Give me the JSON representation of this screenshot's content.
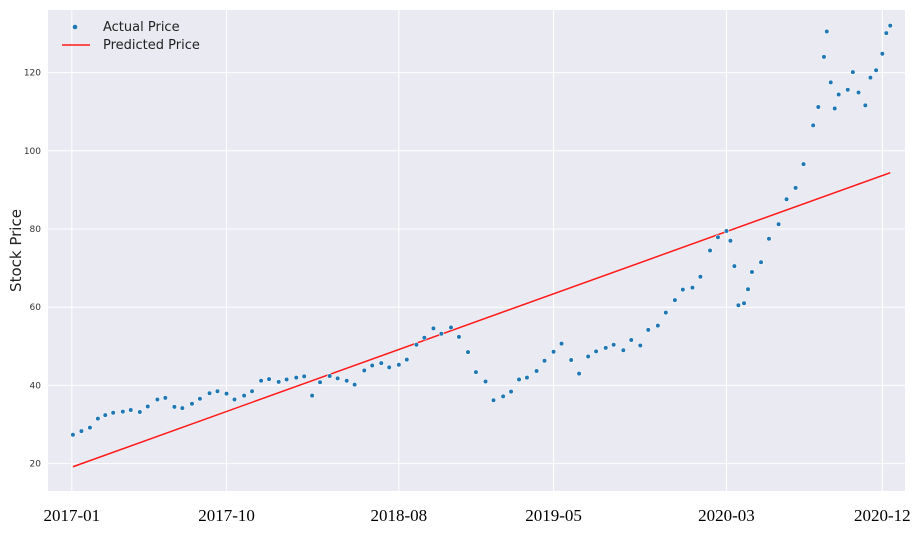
{
  "chart_data": {
    "type": "scatter",
    "xlabel": "",
    "ylabel": "Stock Price",
    "ylim": [
      13,
      136
    ],
    "xlim": [
      "2016-11-20",
      "2021-01-10"
    ],
    "yticks": [
      20,
      40,
      60,
      80,
      100,
      120
    ],
    "xticks": [
      {
        "date": "2017-01-01",
        "label": "2017-01"
      },
      {
        "date": "2017-10-01",
        "label": "2017-10"
      },
      {
        "date": "2018-08-01",
        "label": "2018-08"
      },
      {
        "date": "2019-05-01",
        "label": "2019-05"
      },
      {
        "date": "2020-03-01",
        "label": "2020-03"
      },
      {
        "date": "2020-12-01",
        "label": "2020-12"
      }
    ],
    "trailing_mark": "↵",
    "grid": true,
    "legend_position": "top-left",
    "colors": {
      "actual": "#1f77b4",
      "predicted": "#ff1a1a",
      "plot_bg": "#eaeaf2",
      "grid": "#ffffff"
    },
    "series": [
      {
        "name": "Actual Price",
        "kind": "scatter",
        "points": [
          [
            "2017-01-03",
            27.4
          ],
          [
            "2017-01-18",
            28.3
          ],
          [
            "2017-02-02",
            29.2
          ],
          [
            "2017-02-16",
            31.5
          ],
          [
            "2017-03-01",
            32.4
          ],
          [
            "2017-03-15",
            33.0
          ],
          [
            "2017-04-01",
            33.3
          ],
          [
            "2017-04-15",
            33.7
          ],
          [
            "2017-05-01",
            33.2
          ],
          [
            "2017-05-15",
            34.6
          ],
          [
            "2017-06-01",
            36.4
          ],
          [
            "2017-06-15",
            36.8
          ],
          [
            "2017-07-01",
            34.5
          ],
          [
            "2017-07-15",
            34.2
          ],
          [
            "2017-08-01",
            35.3
          ],
          [
            "2017-08-15",
            36.6
          ],
          [
            "2017-09-01",
            38.0
          ],
          [
            "2017-09-15",
            38.5
          ],
          [
            "2017-10-01",
            37.9
          ],
          [
            "2017-10-15",
            36.4
          ],
          [
            "2017-11-01",
            37.4
          ],
          [
            "2017-11-15",
            38.5
          ],
          [
            "2017-12-01",
            41.2
          ],
          [
            "2017-12-15",
            41.6
          ],
          [
            "2018-01-01",
            40.9
          ],
          [
            "2018-01-15",
            41.5
          ],
          [
            "2018-02-01",
            42.0
          ],
          [
            "2018-02-15",
            42.3
          ],
          [
            "2018-03-01",
            37.4
          ],
          [
            "2018-03-15",
            40.8
          ],
          [
            "2018-04-01",
            42.4
          ],
          [
            "2018-04-15",
            41.8
          ],
          [
            "2018-05-01",
            41.2
          ],
          [
            "2018-05-15",
            40.2
          ],
          [
            "2018-06-01",
            43.8
          ],
          [
            "2018-06-15",
            45.1
          ],
          [
            "2018-07-01",
            45.7
          ],
          [
            "2018-07-15",
            44.6
          ],
          [
            "2018-08-01",
            45.3
          ],
          [
            "2018-08-15",
            46.6
          ],
          [
            "2018-09-01",
            50.4
          ],
          [
            "2018-09-15",
            52.2
          ],
          [
            "2018-10-01",
            54.6
          ],
          [
            "2018-10-15",
            53.2
          ],
          [
            "2018-11-01",
            54.8
          ],
          [
            "2018-11-15",
            52.4
          ],
          [
            "2018-12-01",
            48.5
          ],
          [
            "2018-12-15",
            43.4
          ],
          [
            "2019-01-01",
            41.0
          ],
          [
            "2019-01-15",
            36.2
          ],
          [
            "2019-02-01",
            37.2
          ],
          [
            "2019-02-15",
            38.4
          ],
          [
            "2019-03-01",
            41.5
          ],
          [
            "2019-03-15",
            42.0
          ],
          [
            "2019-04-01",
            43.7
          ],
          [
            "2019-04-15",
            46.3
          ],
          [
            "2019-05-01",
            48.6
          ],
          [
            "2019-05-15",
            50.7
          ],
          [
            "2019-06-01",
            46.5
          ],
          [
            "2019-06-15",
            43.0
          ],
          [
            "2019-07-01",
            47.4
          ],
          [
            "2019-07-15",
            48.7
          ],
          [
            "2019-08-01",
            49.6
          ],
          [
            "2019-08-15",
            50.4
          ],
          [
            "2019-09-01",
            49.0
          ],
          [
            "2019-09-15",
            51.6
          ],
          [
            "2019-10-01",
            50.2
          ],
          [
            "2019-10-15",
            54.2
          ],
          [
            "2019-11-01",
            55.3
          ],
          [
            "2019-11-15",
            58.6
          ],
          [
            "2019-12-01",
            61.8
          ],
          [
            "2019-12-15",
            64.5
          ],
          [
            "2020-01-01",
            65.0
          ],
          [
            "2020-01-15",
            67.8
          ],
          [
            "2020-02-01",
            74.5
          ],
          [
            "2020-02-15",
            77.9
          ],
          [
            "2020-03-01",
            79.5
          ],
          [
            "2020-03-08",
            77.0
          ],
          [
            "2020-03-15",
            70.5
          ],
          [
            "2020-03-22",
            60.5
          ],
          [
            "2020-04-01",
            61.0
          ],
          [
            "2020-04-08",
            64.6
          ],
          [
            "2020-04-15",
            69.0
          ],
          [
            "2020-05-01",
            71.5
          ],
          [
            "2020-05-15",
            77.5
          ],
          [
            "2020-06-01",
            81.2
          ],
          [
            "2020-06-15",
            87.6
          ],
          [
            "2020-07-01",
            90.5
          ],
          [
            "2020-07-15",
            96.6
          ],
          [
            "2020-08-01",
            106.5
          ],
          [
            "2020-08-10",
            111.2
          ],
          [
            "2020-08-20",
            124.0
          ],
          [
            "2020-08-25",
            130.5
          ],
          [
            "2020-09-01",
            117.5
          ],
          [
            "2020-09-08",
            110.8
          ],
          [
            "2020-09-15",
            114.4
          ],
          [
            "2020-10-01",
            115.6
          ],
          [
            "2020-10-10",
            120.1
          ],
          [
            "2020-10-20",
            114.9
          ],
          [
            "2020-11-01",
            111.6
          ],
          [
            "2020-11-10",
            118.7
          ],
          [
            "2020-11-20",
            120.6
          ],
          [
            "2020-12-01",
            124.8
          ],
          [
            "2020-12-08",
            130.1
          ],
          [
            "2020-12-15",
            132.0
          ]
        ]
      },
      {
        "name": "Predicted Price",
        "kind": "line",
        "points": [
          [
            "2017-01-03",
            19.2
          ],
          [
            "2020-12-15",
            94.4
          ]
        ]
      }
    ]
  }
}
